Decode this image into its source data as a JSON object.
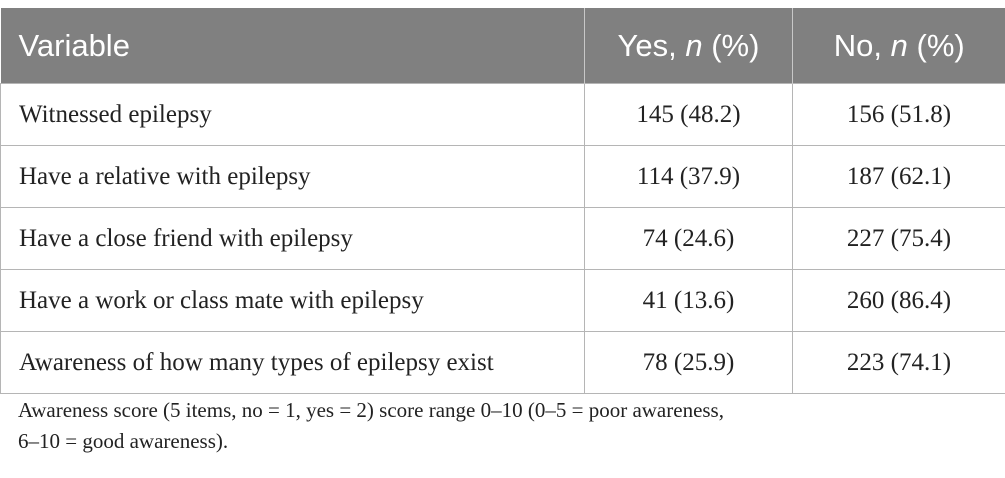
{
  "table": {
    "headers": {
      "variable": "Variable",
      "yes_prefix": "Yes, ",
      "yes_n": "n",
      "yes_suffix": " (%)",
      "no_prefix": "No, ",
      "no_n": "n",
      "no_suffix": " (%)"
    },
    "rows": [
      {
        "variable": "Witnessed epilepsy",
        "yes": "145 (48.2)",
        "no": "156 (51.8)"
      },
      {
        "variable": "Have a relative with epilepsy",
        "yes": "114 (37.9)",
        "no": "187 (62.1)"
      },
      {
        "variable": "Have a close friend with epilepsy",
        "yes": "74 (24.6)",
        "no": "227 (75.4)"
      },
      {
        "variable": "Have a work or class mate with epilepsy",
        "yes": "41 (13.6)",
        "no": "260 (86.4)"
      },
      {
        "variable": "Awareness of how many types of epilepsy exist",
        "yes": "78 (25.9)",
        "no": "223 (74.1)"
      }
    ]
  },
  "footnote": {
    "line1": "Awareness score (5 items, no = 1, yes = 2) score range 0–10 (0–5 = poor awareness,",
    "line2": "6–10 = good awareness)."
  },
  "colors": {
    "header_bg": "#808080",
    "header_text": "#ffffff",
    "border": "#b5b5b5"
  }
}
